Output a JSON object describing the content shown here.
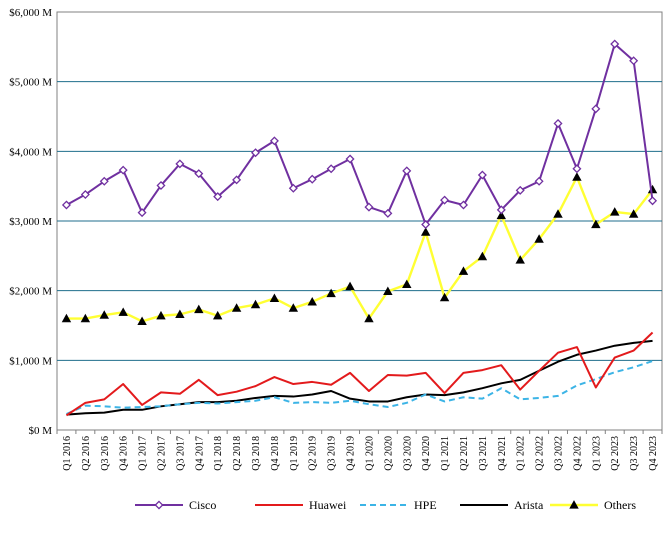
{
  "chart_data": {
    "type": "line",
    "title": "",
    "xlabel": "",
    "ylabel": "",
    "ylim": [
      0,
      6000
    ],
    "yticks": [
      {
        "value": 0,
        "label": "$0 M"
      },
      {
        "value": 1000,
        "label": "$1,000 M"
      },
      {
        "value": 2000,
        "label": "$2,000 M"
      },
      {
        "value": 3000,
        "label": "$3,000 M"
      },
      {
        "value": 4000,
        "label": "$4,000 M"
      },
      {
        "value": 5000,
        "label": "$5,000 M"
      },
      {
        "value": 6000,
        "label": "$6,000 M"
      }
    ],
    "grid": "horizontal",
    "legend_position": "bottom",
    "categories": [
      "Q1 2016",
      "Q2 2016",
      "Q3 2016",
      "Q4 2016",
      "Q1 2017",
      "Q2 2017",
      "Q3 2017",
      "Q4 2017",
      "Q1 2018",
      "Q2 2018",
      "Q3 2018",
      "Q4 2018",
      "Q1 2019",
      "Q2 2019",
      "Q3 2019",
      "Q4 2019",
      "Q1 2020",
      "Q2 2020",
      "Q3 2020",
      "Q4 2020",
      "Q1 2021",
      "Q2 2021",
      "Q3 2021",
      "Q4 2021",
      "Q1 2022",
      "Q2 2022",
      "Q3 2022",
      "Q4 2022",
      "Q1 2023",
      "Q2 2023",
      "Q3 2023",
      "Q4 2023"
    ],
    "series": [
      {
        "name": "Cisco",
        "color": "#7030A0",
        "marker": "diamond",
        "dashed": false,
        "values": [
          3230,
          3380,
          3570,
          3730,
          3120,
          3510,
          3820,
          3680,
          3350,
          3590,
          3980,
          4150,
          3470,
          3600,
          3750,
          3890,
          3200,
          3110,
          3720,
          2950,
          3300,
          3230,
          3660,
          3160,
          3440,
          3570,
          4400,
          3750,
          4610,
          5540,
          5300,
          3290
        ]
      },
      {
        "name": "Huawei",
        "color": "#E31A1C",
        "marker": "none",
        "dashed": false,
        "values": [
          210,
          390,
          440,
          660,
          360,
          540,
          520,
          720,
          500,
          550,
          630,
          760,
          660,
          690,
          650,
          820,
          560,
          790,
          780,
          820,
          530,
          820,
          860,
          930,
          580,
          850,
          1110,
          1190,
          610,
          1040,
          1140,
          1400
        ]
      },
      {
        "name": "HPE",
        "color": "#3CB4E6",
        "marker": "none",
        "dashed": true,
        "values": [
          230,
          350,
          340,
          320,
          330,
          340,
          370,
          390,
          380,
          400,
          420,
          470,
          390,
          400,
          390,
          420,
          370,
          330,
          390,
          510,
          410,
          470,
          450,
          600,
          440,
          460,
          490,
          640,
          730,
          830,
          900,
          990
        ]
      },
      {
        "name": "Arista",
        "color": "#000000",
        "marker": "none",
        "dashed": false,
        "values": [
          220,
          240,
          250,
          290,
          290,
          340,
          370,
          400,
          400,
          420,
          460,
          490,
          480,
          510,
          560,
          450,
          410,
          410,
          470,
          510,
          500,
          540,
          600,
          670,
          720,
          850,
          980,
          1080,
          1140,
          1210,
          1250,
          1280
        ]
      },
      {
        "name": "Others",
        "color": "#FFFF33",
        "marker": "triangle",
        "dashed": false,
        "values": [
          1600,
          1600,
          1650,
          1690,
          1560,
          1640,
          1660,
          1730,
          1640,
          1750,
          1800,
          1890,
          1750,
          1840,
          1960,
          2060,
          1600,
          1990,
          2090,
          2840,
          1900,
          2280,
          2490,
          3080,
          2440,
          2740,
          3100,
          3630,
          2950,
          3130,
          3100,
          3450
        ]
      }
    ]
  }
}
